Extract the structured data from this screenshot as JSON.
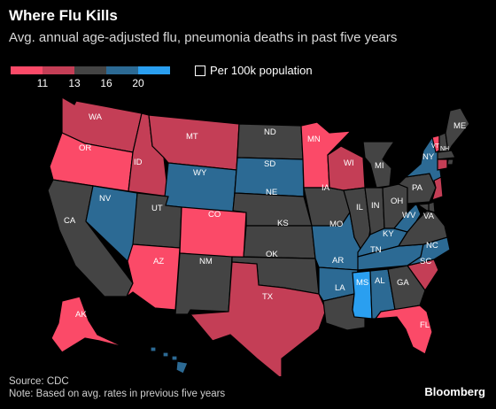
{
  "title": "Where Flu Kills",
  "subtitle": "Avg. annual age-adjusted flu, pneumonia deaths in past five years",
  "unit_label": "Per 100k population",
  "legend": {
    "colors": [
      "#fb4a68",
      "#c43e56",
      "#444444",
      "#2c6a94",
      "#2a9ff0"
    ],
    "ticks": [
      "11",
      "13",
      "16",
      "20"
    ]
  },
  "states": [
    {
      "code": "WA",
      "bucket": 1
    },
    {
      "code": "OR",
      "bucket": 0
    },
    {
      "code": "CA",
      "bucket": 2
    },
    {
      "code": "ID",
      "bucket": 1
    },
    {
      "code": "NV",
      "bucket": 3
    },
    {
      "code": "MT",
      "bucket": 1
    },
    {
      "code": "WY",
      "bucket": 3
    },
    {
      "code": "UT",
      "bucket": 2
    },
    {
      "code": "AZ",
      "bucket": 0
    },
    {
      "code": "CO",
      "bucket": 0
    },
    {
      "code": "NM",
      "bucket": 2
    },
    {
      "code": "ND",
      "bucket": 2
    },
    {
      "code": "SD",
      "bucket": 3
    },
    {
      "code": "NE",
      "bucket": 2
    },
    {
      "code": "KS",
      "bucket": 2
    },
    {
      "code": "OK",
      "bucket": 2
    },
    {
      "code": "TX",
      "bucket": 1
    },
    {
      "code": "MN",
      "bucket": 0
    },
    {
      "code": "IA",
      "bucket": 2
    },
    {
      "code": "MO",
      "bucket": 3
    },
    {
      "code": "AR",
      "bucket": 3
    },
    {
      "code": "LA",
      "bucket": 2
    },
    {
      "code": "WI",
      "bucket": 1
    },
    {
      "code": "IL",
      "bucket": 2
    },
    {
      "code": "MI",
      "bucket": 2
    },
    {
      "code": "IN",
      "bucket": 2
    },
    {
      "code": "OH",
      "bucket": 2
    },
    {
      "code": "KY",
      "bucket": 3
    },
    {
      "code": "TN",
      "bucket": 3
    },
    {
      "code": "MS",
      "bucket": 4
    },
    {
      "code": "AL",
      "bucket": 3
    },
    {
      "code": "GA",
      "bucket": 2
    },
    {
      "code": "FL",
      "bucket": 0
    },
    {
      "code": "SC",
      "bucket": 1
    },
    {
      "code": "NC",
      "bucket": 3
    },
    {
      "code": "VA",
      "bucket": 2
    },
    {
      "code": "WV",
      "bucket": 3
    },
    {
      "code": "PA",
      "bucket": 2
    },
    {
      "code": "NY",
      "bucket": 3
    },
    {
      "code": "VT",
      "bucket": 0
    },
    {
      "code": "NH",
      "bucket": 2
    },
    {
      "code": "ME",
      "bucket": 2
    },
    {
      "code": "MA",
      "bucket": 2
    },
    {
      "code": "CT",
      "bucket": 1
    },
    {
      "code": "NJ",
      "bucket": 1
    },
    {
      "code": "DE",
      "bucket": 2
    },
    {
      "code": "MD",
      "bucket": 2
    },
    {
      "code": "RI",
      "bucket": 2
    },
    {
      "code": "AK",
      "bucket": 0
    },
    {
      "code": "HI",
      "bucket": 3
    }
  ],
  "source": "Source: CDC",
  "note": "Note: Based on avg. rates in previous five years",
  "brand": "Bloomberg"
}
